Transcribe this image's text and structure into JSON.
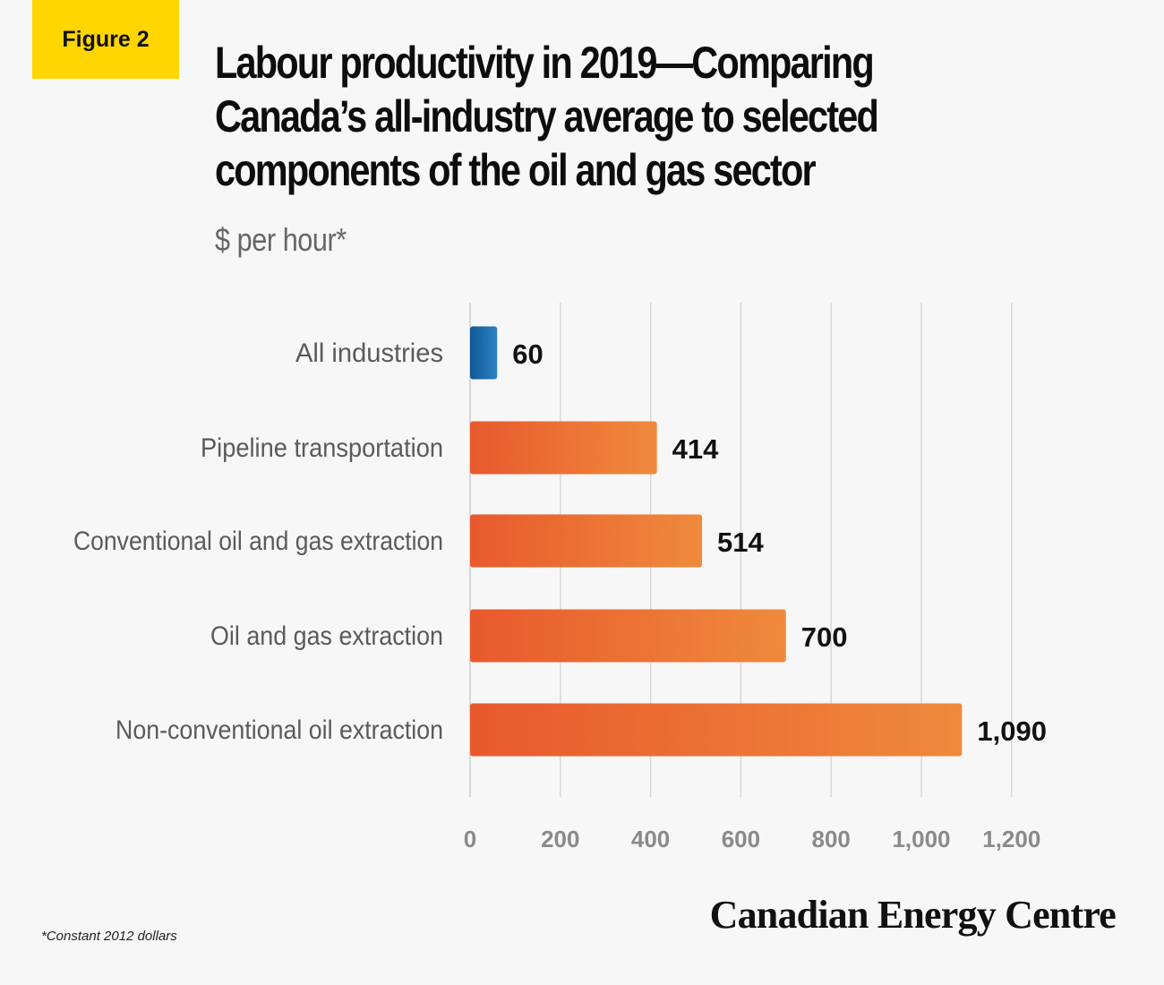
{
  "figure_label": "Figure 2",
  "title": "Labour productivity in 2019—Comparing Canada’s all-industry average to selected components of the oil and gas sector",
  "subtitle": "$ per hour*",
  "footnote": "*Constant 2012 dollars",
  "brand": "Canadian Energy Centre",
  "colors": {
    "highlight_start": "#0f5795",
    "highlight_end": "#2d82c4",
    "bar_start": "#e8592d",
    "bar_end": "#ef8a3c",
    "grid": "#d6d6d6"
  },
  "chart_data": {
    "type": "bar",
    "orientation": "horizontal",
    "title": "Labour productivity in 2019—Comparing Canada’s all-industry average to selected components of the oil and gas sector",
    "ylabel": "$ per hour*",
    "categories": [
      "All industries",
      "Pipeline transportation",
      "Conventional oil and gas extraction",
      "Oil and gas extraction",
      "Non-conventional oil extraction"
    ],
    "values": [
      60,
      414,
      514,
      700,
      1090
    ],
    "value_labels": [
      "60",
      "414",
      "514",
      "700",
      "1,090"
    ],
    "highlight_index": 0,
    "xlim": [
      0,
      1200
    ],
    "ticks": [
      0,
      200,
      400,
      600,
      800,
      1000,
      1200
    ],
    "tick_labels": [
      "0",
      "200",
      "400",
      "600",
      "800",
      "1,000",
      "1,200"
    ],
    "grid": true,
    "legend": "none"
  }
}
